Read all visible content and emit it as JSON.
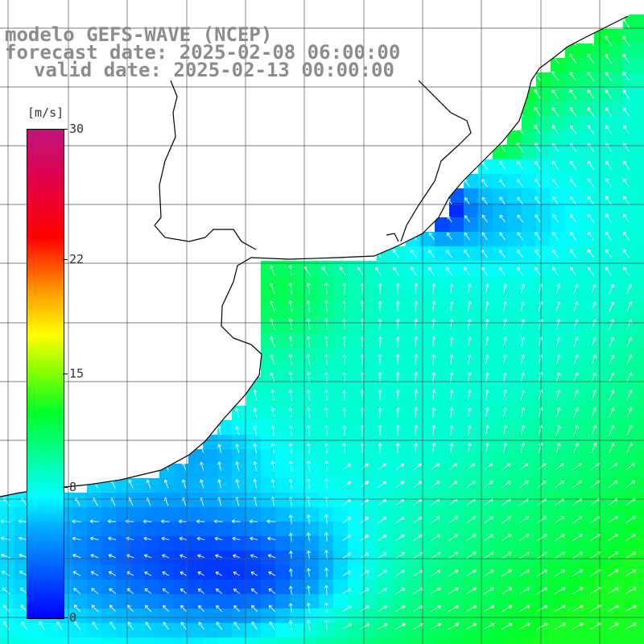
{
  "header": {
    "model": "modelo GEFS-WAVE (NCEP)",
    "forecast": "forecast date: 2025-02-08 06:00:00",
    "valid": "valid date: 2025-02-13 00:00:00"
  },
  "colorbar": {
    "unit": "[m/s]",
    "ticks": [
      "30",
      "22",
      "15",
      "8",
      "0"
    ],
    "tick_values": [
      30,
      22,
      15,
      8,
      0
    ],
    "range": [
      0,
      30
    ]
  },
  "colors": {
    "grid": "#555555",
    "coast": "#000000",
    "arrow": "#ffffff",
    "land": "#ffffff",
    "label": "#8c8c8c"
  }
}
